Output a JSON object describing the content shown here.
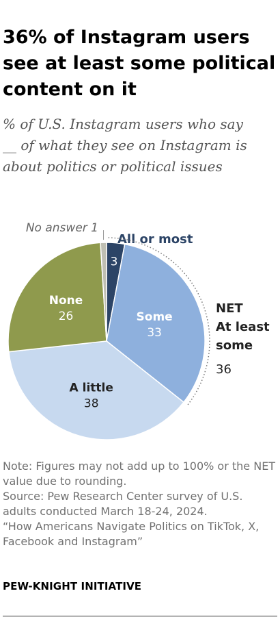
{
  "title": "36% of Instagram users see at least some political content on it",
  "subtitle": "% of U.S. Instagram users who say __ of what they see on Instagram is about politics or political issues",
  "chart_data": {
    "type": "pie",
    "slices": [
      {
        "label": "All or most",
        "value": 3,
        "color": "#2c4466"
      },
      {
        "label": "Some",
        "value": 33,
        "color": "#8eb0dd"
      },
      {
        "label": "A little",
        "value": 38,
        "color": "#c7d9ef"
      },
      {
        "label": "None",
        "value": 26,
        "color": "#8f9a4d"
      },
      {
        "label": "No answer",
        "value": 1,
        "color": "#bfbfb3"
      }
    ],
    "net": {
      "label_lines": [
        "NET",
        "At least",
        "some"
      ],
      "value": 36
    }
  },
  "note": "Note: Figures may not add up to 100% or the NET value due to rounding.",
  "source": "Source: Pew Research Center survey of U.S. adults conducted March 18-24, 2024.",
  "report": "“How Americans Navigate Politics on TikTok, X, Facebook and Instagram”",
  "brand": "PEW-KNIGHT INITIATIVE"
}
